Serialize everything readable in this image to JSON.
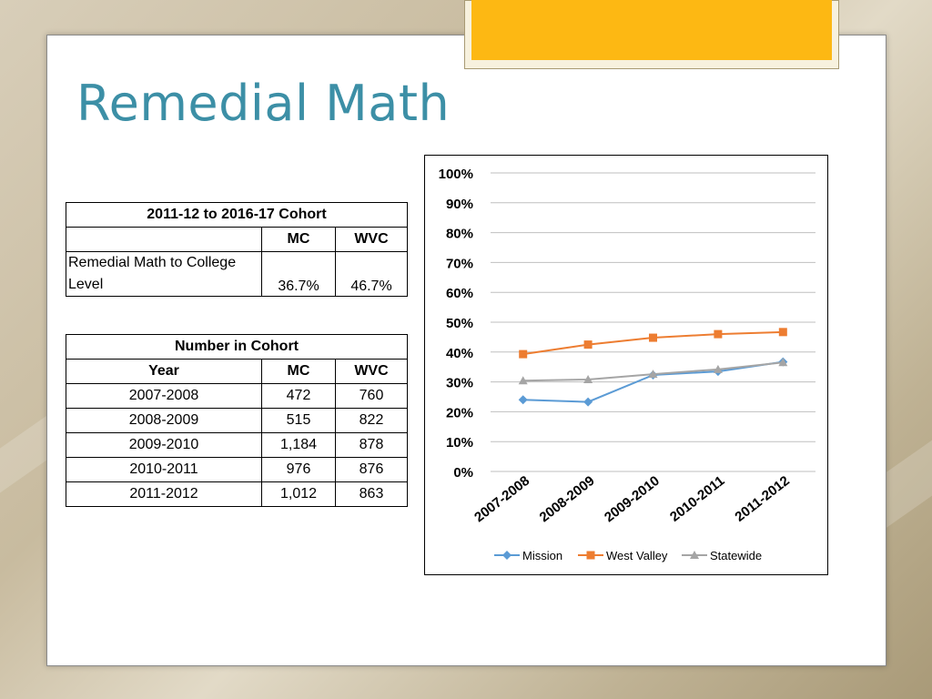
{
  "slide": {
    "title": "Remedial Math"
  },
  "table_summary": {
    "header": "2011-12 to 2016-17 Cohort",
    "columns": [
      "",
      "MC",
      "WVC"
    ],
    "row_label_line1": "Remedial Math to College",
    "row_label_line2": "Level",
    "mc_value": "36.7%",
    "wvc_value": "46.7%"
  },
  "table_cohort": {
    "header": "Number in Cohort",
    "columns": [
      "Year",
      "MC",
      "WVC"
    ],
    "rows": [
      [
        "2007-2008",
        "472",
        "760"
      ],
      [
        "2008-2009",
        "515",
        "822"
      ],
      [
        "2009-2010",
        "1,184",
        "878"
      ],
      [
        "2010-2011",
        "976",
        "876"
      ],
      [
        "2011-2012",
        "1,012",
        "863"
      ]
    ]
  },
  "chart_data": {
    "type": "line",
    "title": "",
    "xlabel": "",
    "ylabel": "",
    "categories": [
      "2007-2008",
      "2008-2009",
      "2009-2010",
      "2010-2011",
      "2011-2012"
    ],
    "yticks": [
      "0%",
      "10%",
      "20%",
      "30%",
      "40%",
      "50%",
      "60%",
      "70%",
      "80%",
      "90%",
      "100%"
    ],
    "ylim": [
      0,
      100
    ],
    "grid": true,
    "legend_position": "bottom",
    "series": [
      {
        "name": "Mission",
        "color": "#5b9bd5",
        "marker": "diamond",
        "values": [
          24,
          23.3,
          32.3,
          33.5,
          36.7
        ]
      },
      {
        "name": "West Valley",
        "color": "#ed7d31",
        "marker": "square",
        "values": [
          39.3,
          42.5,
          44.8,
          46.0,
          46.7
        ]
      },
      {
        "name": "Statewide",
        "color": "#a5a5a5",
        "marker": "triangle",
        "values": [
          30.4,
          30.8,
          32.6,
          34.2,
          36.5
        ]
      }
    ]
  }
}
